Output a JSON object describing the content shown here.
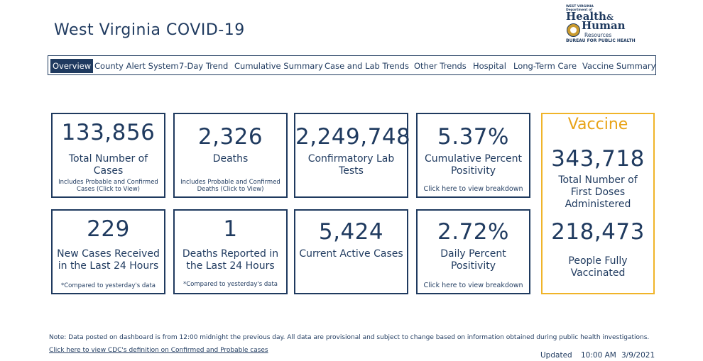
{
  "page_title": "West Virginia COVID-19",
  "logo": {
    "line1": "WEST VIRGINIA",
    "line2": "Department of",
    "word1": "Health",
    "amp": "&",
    "word2": "Human",
    "word3": "Resources",
    "bureau": "BUREAU FOR PUBLIC HEALTH"
  },
  "nav": {
    "tabs": [
      {
        "label": "Overview",
        "active": true
      },
      {
        "label": "County Alert System"
      },
      {
        "label": "7-Day Trend"
      },
      {
        "label": "Cumulative Summary"
      },
      {
        "label": "Case and Lab Trends"
      },
      {
        "label": "Other Trends"
      },
      {
        "label": "Hospital"
      },
      {
        "label": "Long-Term Care"
      },
      {
        "label": "Vaccine Summary"
      }
    ]
  },
  "cards": {
    "total_cases": {
      "value": "133,856",
      "label": "Total Number of Cases",
      "note": "Includes Probable and Confirmed Cases (Click to View)"
    },
    "deaths": {
      "value": "2,326",
      "label": "Deaths",
      "note": "Includes Probable and Confirmed Deaths (Click to View)"
    },
    "lab_tests": {
      "value": "2,249,748",
      "label": "Confirmatory Lab Tests"
    },
    "cum_positivity": {
      "value": "5.37%",
      "label": "Cumulative Percent Positivity",
      "note": "Click here to view breakdown"
    },
    "new_cases": {
      "value": "229",
      "label": "New Cases Received in the Last 24 Hours",
      "note": "*Compared to yesterday's data"
    },
    "new_deaths": {
      "value": "1",
      "label": "Deaths Reported in the Last 24 Hours",
      "note": "*Compared to yesterday's data"
    },
    "active_cases": {
      "value": "5,424",
      "label": "Current Active Cases"
    },
    "daily_positivity": {
      "value": "2.72%",
      "label": "Daily Percent Positivity",
      "note": "Click here to view breakdown"
    }
  },
  "vaccine": {
    "title": "Vaccine",
    "first_doses_value": "343,718",
    "first_doses_label": "Total Number of First Doses Administered",
    "fully_value": "218,473",
    "fully_label": "People Fully Vaccinated"
  },
  "footer": {
    "note": "Note: Data posted on dashboard is from 12:00 midnight the previous day. All data are provisional and subject to change based on information obtained during public health investigations.",
    "cdc_link": "Click here to view CDC's definition on Confirmed and Probable cases",
    "updated_label": "Updated",
    "updated_time": "10:00 AM",
    "updated_date": "3/9/2021"
  },
  "colors": {
    "navy": "#1f3a5f",
    "gold": "#f0b429"
  }
}
